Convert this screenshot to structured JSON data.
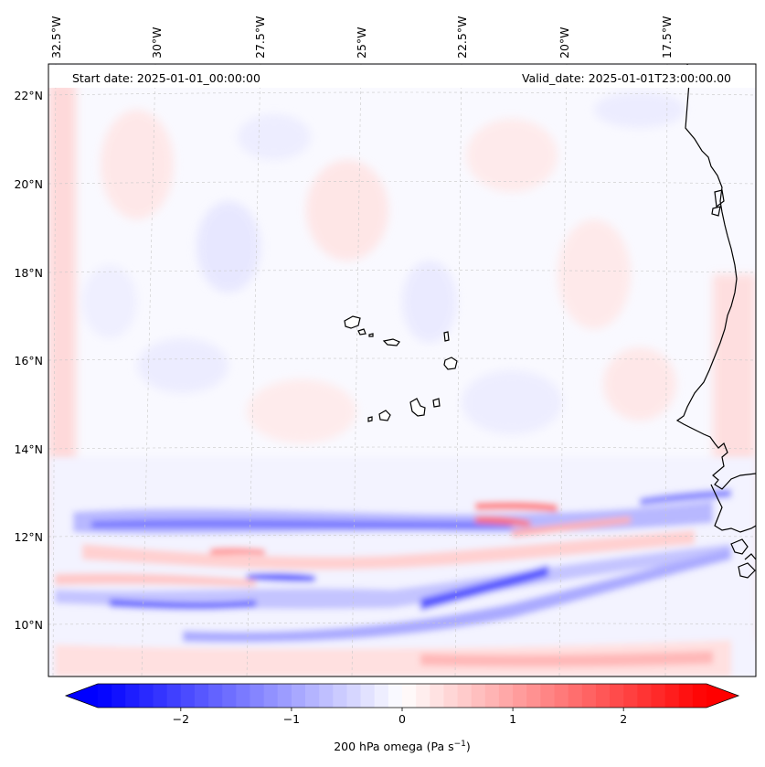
{
  "header": {
    "start_date": "Start date: 2025-01-01_00:00:00",
    "valid_date": "Valid_date: 2025-01-01T23:00:00.00"
  },
  "map": {
    "lon_labels": [
      "32.5°W",
      "30°W",
      "27.5°W",
      "25°W",
      "22.5°W",
      "20°W",
      "17.5°W"
    ],
    "lat_labels": [
      "22°N",
      "20°N",
      "18°N",
      "16°N",
      "14°N",
      "12°N",
      "10°N"
    ],
    "lon_range": [
      -33.0,
      -15.5
    ],
    "lat_range": [
      8.9,
      22.8
    ]
  },
  "colorbar": {
    "label_prefix": "200 hPa omega (Pa s",
    "label_exp": "−1",
    "label_suffix": ")",
    "ticks": [
      "−2",
      "−1",
      "0",
      "1",
      "2"
    ],
    "tick_values": [
      -2,
      -1,
      0,
      1,
      2
    ],
    "range": [
      -2.75,
      2.75
    ],
    "cmap": "bwr",
    "colors": {
      "min": "#0000ff",
      "mid": "#ffffff",
      "max": "#ff0000"
    }
  }
}
